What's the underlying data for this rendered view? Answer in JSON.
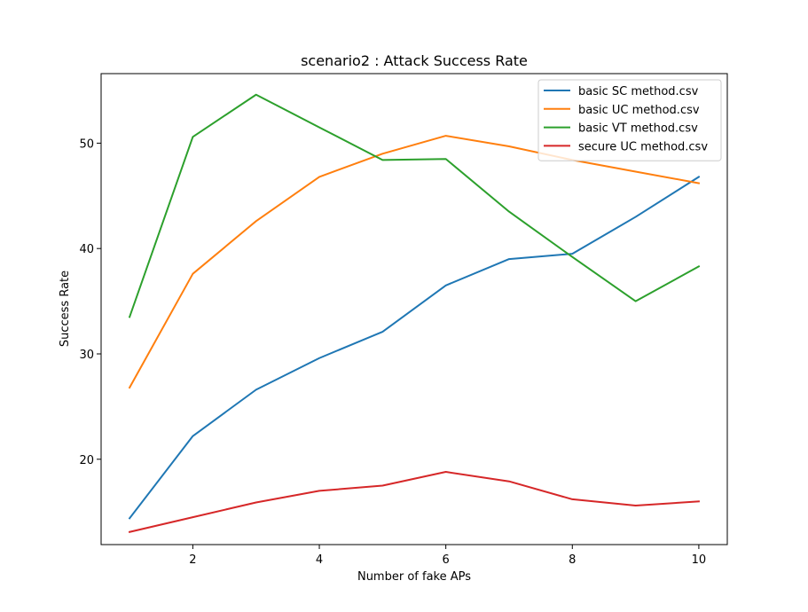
{
  "chart_data": {
    "type": "line",
    "title": "scenario2 : Attack Success Rate",
    "xlabel": "Number of fake APs",
    "ylabel": "Success Rate",
    "x": [
      1,
      2,
      3,
      4,
      5,
      6,
      7,
      8,
      9,
      10
    ],
    "xlim": [
      0.55,
      10.45
    ],
    "ylim": [
      11.9,
      56.6
    ],
    "xticks": [
      2,
      4,
      6,
      8,
      10
    ],
    "yticks": [
      20,
      30,
      40,
      50
    ],
    "grid": false,
    "legend_position": "top-right",
    "series": [
      {
        "name": "basic SC method.csv",
        "color": "#1f77b4",
        "values": [
          14.4,
          22.2,
          26.6,
          29.6,
          32.1,
          36.5,
          39.0,
          39.5,
          43.0,
          46.8
        ]
      },
      {
        "name": "basic UC method.csv",
        "color": "#ff7f0e",
        "values": [
          26.8,
          37.6,
          42.6,
          46.8,
          49.0,
          50.7,
          49.7,
          48.4,
          47.3,
          46.2
        ]
      },
      {
        "name": "basic VT method.csv",
        "color": "#2ca02c",
        "values": [
          33.5,
          50.6,
          54.6,
          51.5,
          48.4,
          48.5,
          43.5,
          39.2,
          35.0,
          38.3
        ]
      },
      {
        "name": "secure UC method.csv",
        "color": "#d62728",
        "values": [
          13.1,
          14.5,
          15.9,
          17.0,
          17.5,
          18.8,
          17.9,
          16.2,
          15.6,
          16.0
        ]
      }
    ]
  }
}
